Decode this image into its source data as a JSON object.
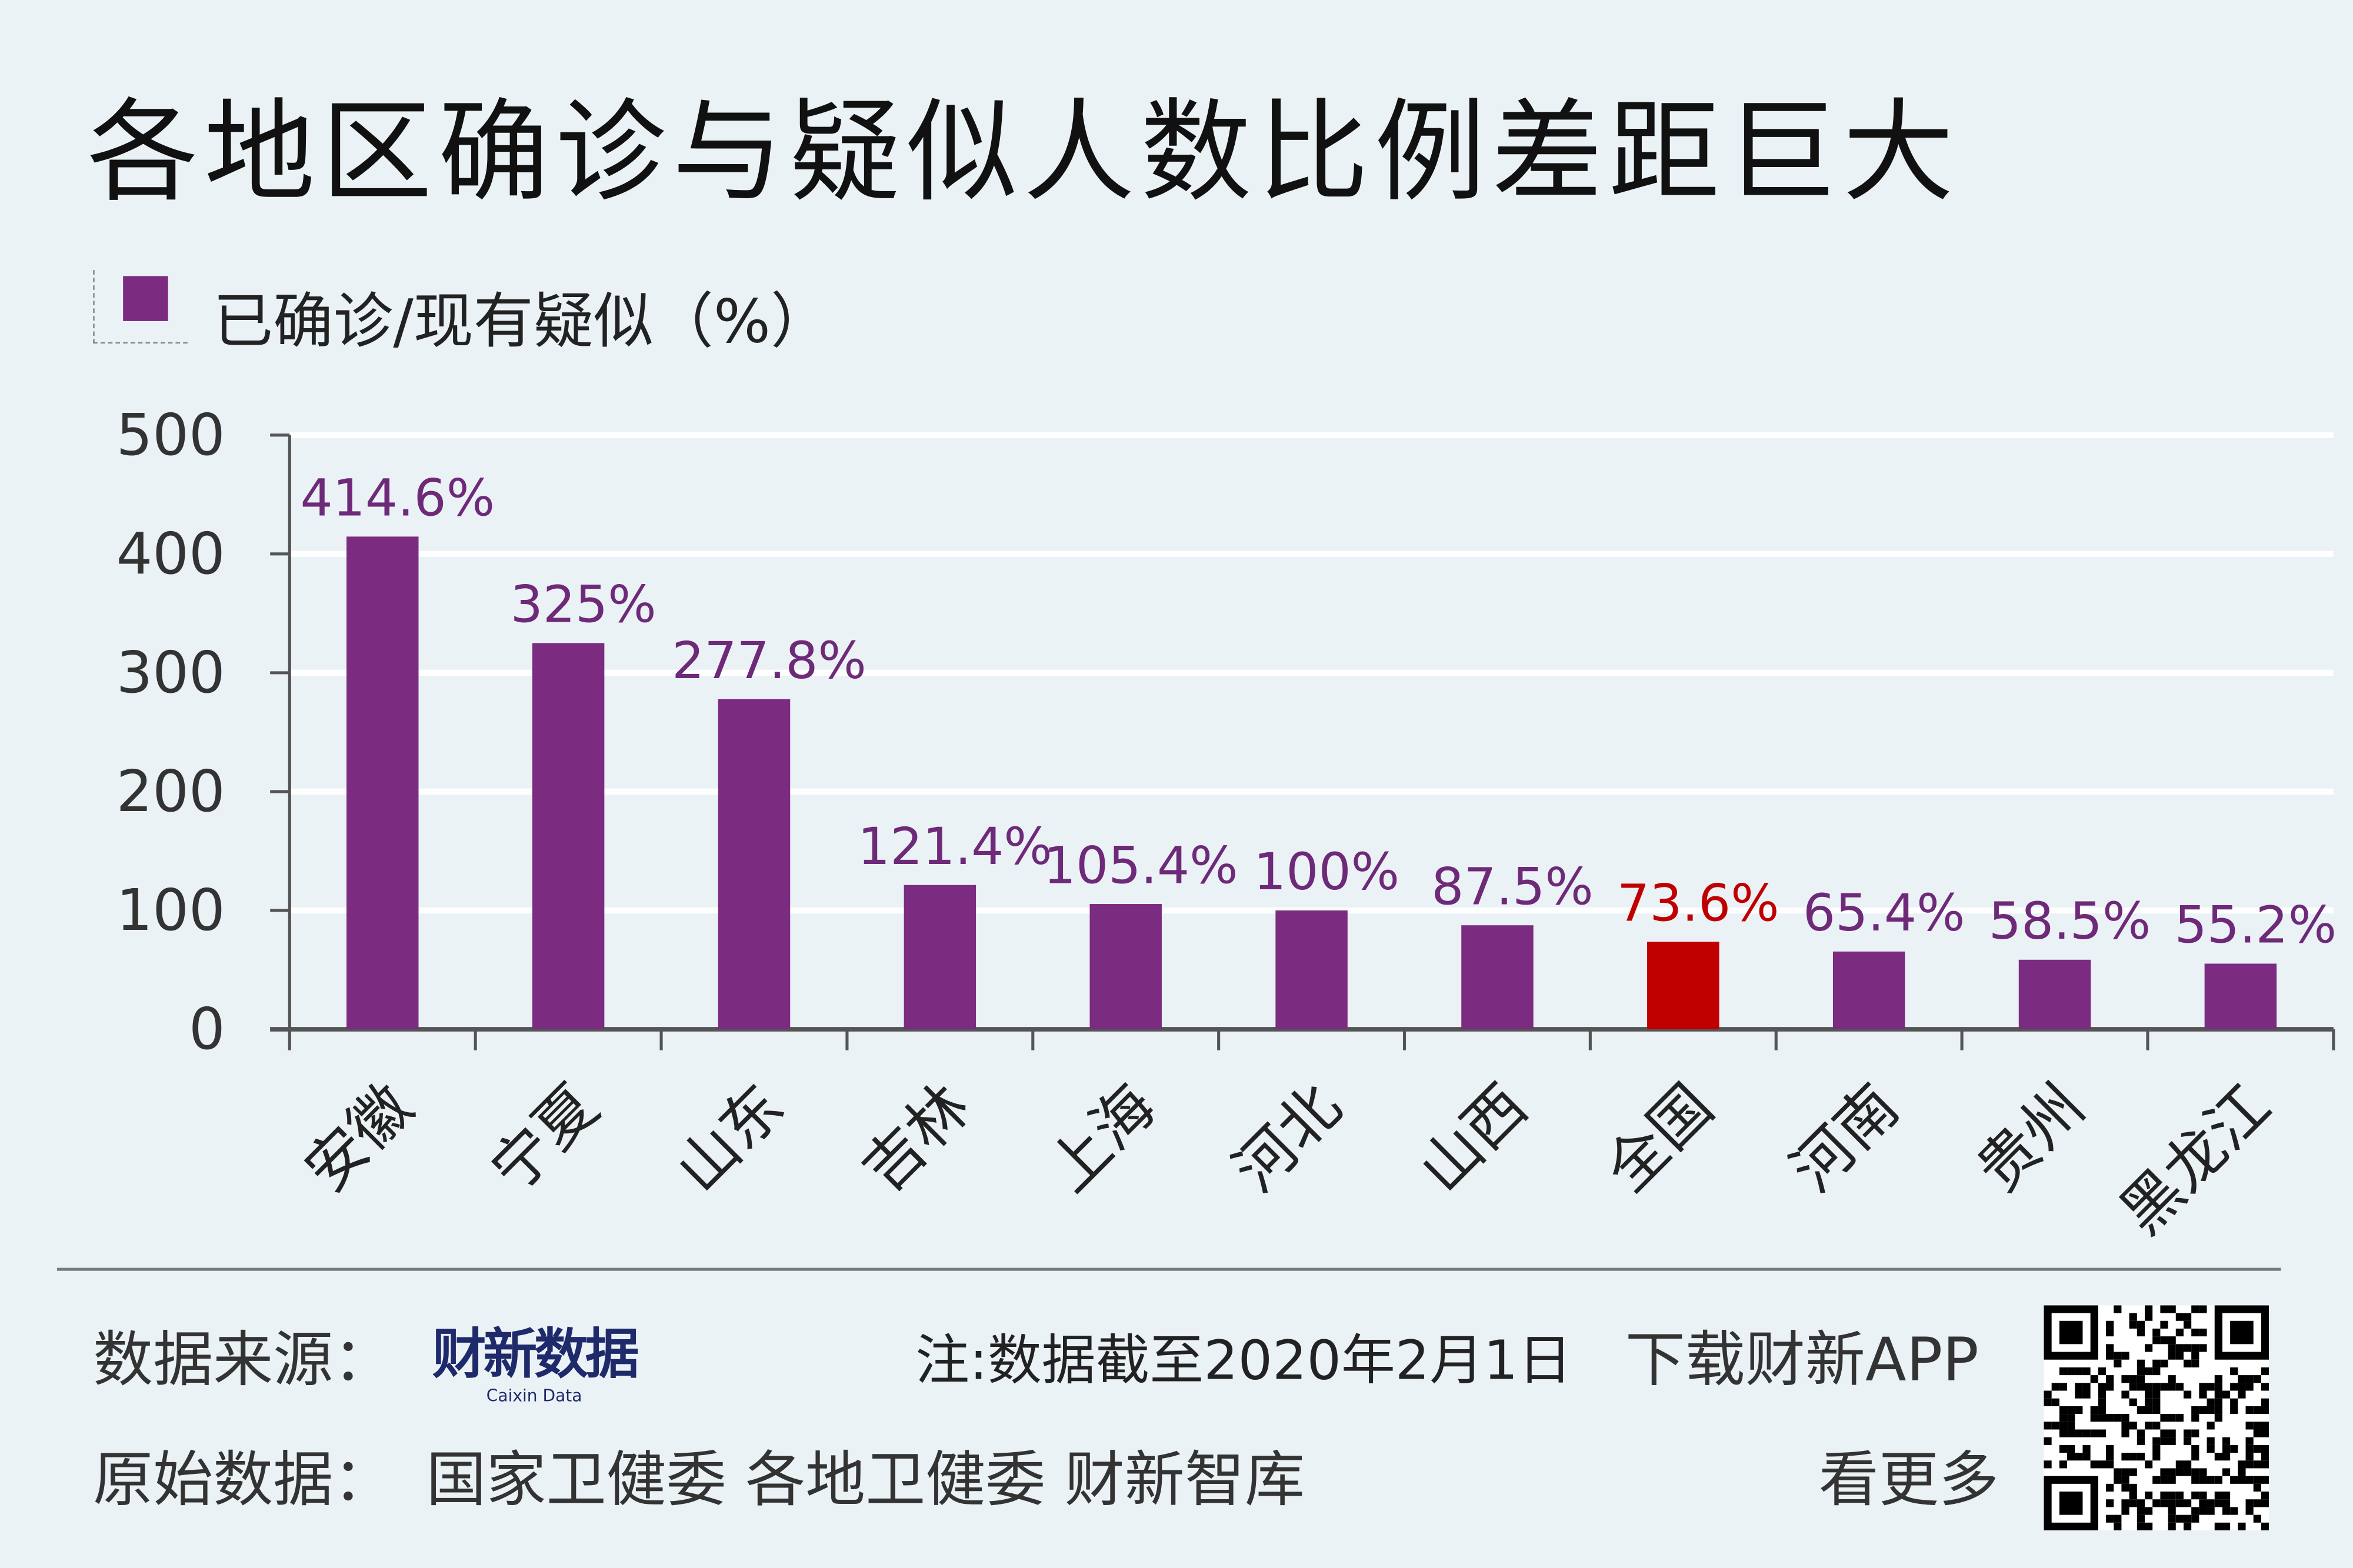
{
  "title": "各地区确诊与疑似人数比例差距巨大",
  "colors": {
    "background": "#eaf2f6",
    "bar": "#7b2c80",
    "highlight": "#c00000",
    "label": "#6e2a78",
    "grid": "#ffffff"
  },
  "chart_data": {
    "type": "bar",
    "title": "各地区确诊与疑似人数比例差距巨大",
    "legend": {
      "entries": [
        "已确诊/现有疑似（%）"
      ],
      "placement": "top-left"
    },
    "categories": [
      "安徽",
      "宁夏",
      "山东",
      "吉林",
      "上海",
      "河北",
      "山西",
      "全国",
      "河南",
      "贵州",
      "黑龙江"
    ],
    "values": [
      414.6,
      325,
      277.8,
      121.4,
      105.4,
      100,
      87.5,
      73.6,
      65.4,
      58.5,
      55.2
    ],
    "data_labels": [
      "414.6%",
      "325%",
      "277.8%",
      "121.4%",
      "105.4%",
      "100%",
      "87.5%",
      "73.6%",
      "65.4%",
      "58.5%",
      "55.2%"
    ],
    "highlight_category": "全国",
    "ylim": [
      0,
      500
    ],
    "yticks": [
      "0",
      "100",
      "200",
      "300",
      "400",
      "500"
    ],
    "grid": true,
    "xlabel": "",
    "ylabel": ""
  },
  "footer": {
    "source_label": "数据来源：",
    "source_logo": "财新数据",
    "source_logo_en": "Caixin Data",
    "note": "注:数据截至2020年2月1日",
    "raw_label": "原始数据：",
    "raw_sources": "国家卫健委 各地卫健委 财新智库",
    "app_line1": "下载财新APP",
    "app_line2": "看更多"
  }
}
